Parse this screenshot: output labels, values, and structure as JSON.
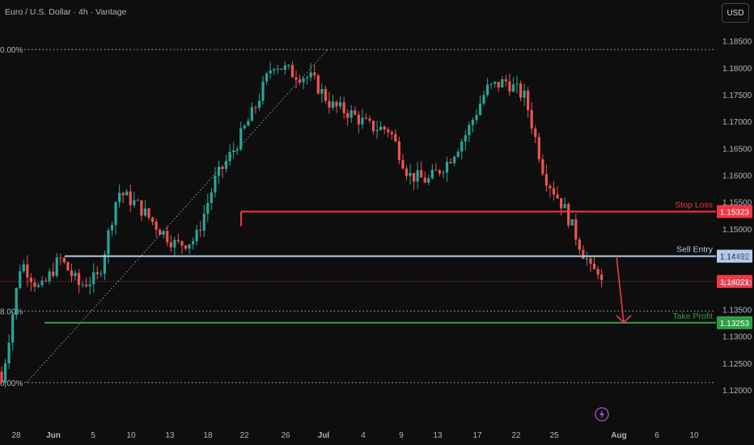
{
  "header": {
    "title": "Euro / U.S. Dollar · 4h · Vantage",
    "currency": "USD"
  },
  "colors": {
    "background": "#0e0e0e",
    "bull": "#26a69a",
    "bear": "#ef5350",
    "stop_loss": "#f23645",
    "sell_entry": "#b2cdf0",
    "take_profit": "#2e9e45",
    "current_price": "#f23645",
    "axis_text": "#b2b5be"
  },
  "chart_data": {
    "type": "candlestick",
    "title": "Euro / U.S. Dollar · 4h · Vantage",
    "timeframe": "4h",
    "ylim": [
      1.1185,
      1.1875
    ],
    "yticks": [
      "1.18500",
      "1.18000",
      "1.17500",
      "1.17000",
      "1.16500",
      "1.16000",
      "1.15500",
      "1.15000",
      "1.14500",
      "1.14000",
      "1.13500",
      "1.13000",
      "1.12500",
      "1.12000"
    ],
    "ytick_values": [
      1.185,
      1.18,
      1.175,
      1.17,
      1.165,
      1.16,
      1.155,
      1.15,
      1.145,
      1.14,
      1.135,
      1.13,
      1.125,
      1.12
    ],
    "xticks": [
      "28",
      "Jun",
      "5",
      "10",
      "13",
      "18",
      "22",
      "26",
      "Jul",
      "4",
      "9",
      "13",
      "17",
      "22",
      "25",
      "Aug",
      "6",
      "10"
    ],
    "xtick_positions": [
      20,
      66,
      115,
      162,
      210,
      257,
      302,
      353,
      400,
      449,
      496,
      541,
      590,
      638,
      685,
      765,
      812,
      858
    ],
    "fib_labels": [
      {
        "label": "0.00%",
        "value": 1.1834
      },
      {
        "label": "8.00%",
        "value": 1.1347
      },
      {
        "label": "0.00%",
        "value": 1.1214
      }
    ],
    "levels": [
      {
        "name": "Stop Loss",
        "price": "1.15323",
        "value": 1.15323
      },
      {
        "name": "Sell Entry",
        "price": "1.14492",
        "value": 1.14492
      },
      {
        "name": "Take Profit",
        "price": "1.13253",
        "value": 1.13253
      }
    ],
    "current_price": {
      "price": "1.14021",
      "value": 1.14021
    },
    "anchors": [
      {
        "x": "28",
        "y": 1.1214
      },
      {
        "x": "Jun",
        "y": 1.144
      },
      {
        "x": "3",
        "y": 1.1385
      },
      {
        "x": "5",
        "y": 1.1445
      },
      {
        "x": "9",
        "y": 1.1395
      },
      {
        "x": "11",
        "y": 1.141
      },
      {
        "x": "13",
        "y": 1.157
      },
      {
        "x": "16",
        "y": 1.1545
      },
      {
        "x": "18",
        "y": 1.1505
      },
      {
        "x": "20",
        "y": 1.147
      },
      {
        "x": "22",
        "y": 1.148
      },
      {
        "x": "24",
        "y": 1.159
      },
      {
        "x": "26",
        "y": 1.165
      },
      {
        "x": "28",
        "y": 1.172
      },
      {
        "x": "Jul",
        "y": 1.181
      },
      {
        "x": "2",
        "y": 1.179
      },
      {
        "x": "4",
        "y": 1.178
      },
      {
        "x": "7",
        "y": 1.173
      },
      {
        "x": "9",
        "y": 1.1715
      },
      {
        "x": "11",
        "y": 1.169
      },
      {
        "x": "14",
        "y": 1.1685
      },
      {
        "x": "16",
        "y": 1.16
      },
      {
        "x": "17",
        "y": 1.159
      },
      {
        "x": "18",
        "y": 1.1625
      },
      {
        "x": "21",
        "y": 1.168
      },
      {
        "x": "23",
        "y": 1.176
      },
      {
        "x": "24",
        "y": 1.1775
      },
      {
        "x": "25",
        "y": 1.1745
      },
      {
        "x": "28",
        "y": 1.16
      },
      {
        "x": "29",
        "y": 1.154
      },
      {
        "x": "30",
        "y": 1.1455
      },
      {
        "x": "31",
        "y": 1.1402
      }
    ],
    "projection": {
      "from": 1.14492,
      "to": 1.13253
    },
    "grid": false
  }
}
